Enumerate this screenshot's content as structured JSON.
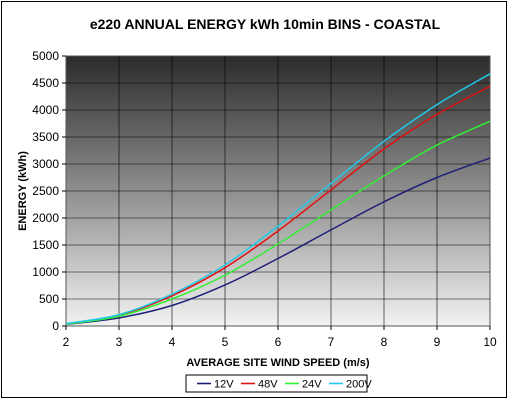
{
  "chart_data": {
    "type": "line",
    "title": "e220 ANNUAL ENERGY kWh 10min BINS - COASTAL",
    "xlabel": "AVERAGE SITE WIND SPEED (m/s)",
    "ylabel": "ENERGY (kWh)",
    "xlim": [
      2,
      10
    ],
    "ylim": [
      0,
      5000
    ],
    "x_ticks": [
      "2",
      "3",
      "4",
      "5",
      "6",
      "7",
      "8",
      "9",
      "10"
    ],
    "y_ticks": [
      "0",
      "500",
      "1000",
      "1500",
      "2000",
      "2500",
      "3000",
      "3500",
      "4000",
      "4500",
      "5000"
    ],
    "grid": true,
    "legend_position": "bottom",
    "x": [
      2,
      3,
      4,
      5,
      6,
      7,
      8,
      9,
      10
    ],
    "series": [
      {
        "name": "12V",
        "color": "#1f1f7a",
        "values": [
          30,
          150,
          380,
          760,
          1250,
          1780,
          2300,
          2750,
          3110
        ]
      },
      {
        "name": "48V",
        "color": "#e01010",
        "values": [
          40,
          200,
          560,
          1080,
          1760,
          2520,
          3280,
          3920,
          4440
        ]
      },
      {
        "name": "24V",
        "color": "#33ee33",
        "values": [
          35,
          180,
          500,
          940,
          1520,
          2150,
          2780,
          3350,
          3790
        ]
      },
      {
        "name": "200V",
        "color": "#22c8e8",
        "values": [
          45,
          210,
          590,
          1130,
          1850,
          2640,
          3420,
          4100,
          4670
        ]
      }
    ]
  }
}
